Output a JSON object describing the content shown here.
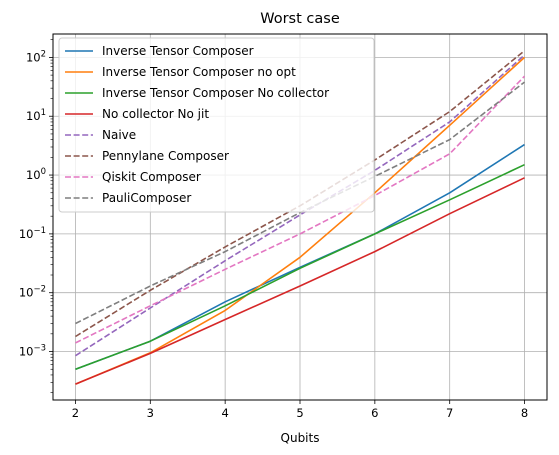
{
  "chart_data": {
    "type": "line",
    "title": "Worst case",
    "xlabel": "Qubits",
    "ylabel": "",
    "x": [
      2,
      3,
      4,
      5,
      6,
      7,
      8
    ],
    "xlim": [
      1.7,
      8.3
    ],
    "ylim": [
      0.00015,
      250
    ],
    "yscale": "log",
    "grid": true,
    "legend_position": "top-left",
    "x_ticks": [
      "2",
      "3",
      "4",
      "5",
      "6",
      "7",
      "8"
    ],
    "y_ticks": [
      {
        "value": 0.001,
        "base": "10",
        "exp": "−3"
      },
      {
        "value": 0.01,
        "base": "10",
        "exp": "−2"
      },
      {
        "value": 0.1,
        "base": "10",
        "exp": "−1"
      },
      {
        "value": 1,
        "base": "10",
        "exp": "0"
      },
      {
        "value": 10,
        "base": "10",
        "exp": "1"
      },
      {
        "value": 100,
        "base": "10",
        "exp": "2"
      }
    ],
    "series": [
      {
        "name": "Inverse Tensor Composer",
        "color": "#1f77b4",
        "style": "solid",
        "values": [
          0.0005,
          0.0015,
          0.007,
          0.027,
          0.1,
          0.5,
          3.3
        ]
      },
      {
        "name": "Inverse Tensor Composer no opt",
        "color": "#ff7f0e",
        "style": "solid",
        "values": [
          0.00028,
          0.00095,
          0.005,
          0.04,
          0.5,
          7,
          100
        ]
      },
      {
        "name": "Inverse Tensor Composer No collector",
        "color": "#2ca02c",
        "style": "solid",
        "values": [
          0.0005,
          0.0015,
          0.006,
          0.026,
          0.1,
          0.38,
          1.5
        ]
      },
      {
        "name": "No collector No jit",
        "color": "#d62728",
        "style": "solid",
        "values": [
          0.00028,
          0.00093,
          0.0035,
          0.013,
          0.05,
          0.22,
          0.9
        ]
      },
      {
        "name": "Naive",
        "color": "#9467bd",
        "style": "dashed",
        "values": [
          0.00085,
          0.0055,
          0.035,
          0.21,
          1.2,
          8,
          110
        ]
      },
      {
        "name": "Pennylane Composer",
        "color": "#8c564b",
        "style": "dashed",
        "values": [
          0.0018,
          0.011,
          0.06,
          0.3,
          1.8,
          12,
          130
        ]
      },
      {
        "name": "Qiskit Composer",
        "color": "#e377c2",
        "style": "dashed",
        "values": [
          0.0014,
          0.006,
          0.025,
          0.1,
          0.45,
          2.3,
          48
        ]
      },
      {
        "name": "PauliComposer",
        "color": "#7f7f7f",
        "style": "dashed",
        "values": [
          0.003,
          0.013,
          0.05,
          0.23,
          0.95,
          4,
          38
        ]
      }
    ]
  }
}
